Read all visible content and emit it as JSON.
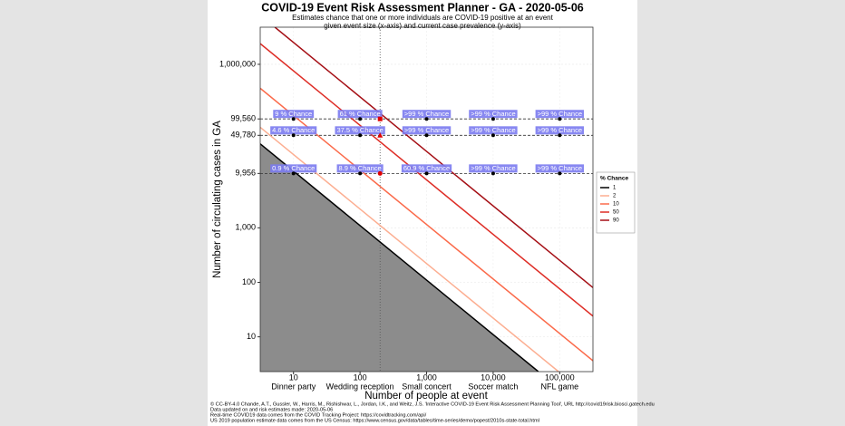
{
  "chart_data": {
    "type": "line",
    "title": "COVID-19 Event Risk Assessment Planner - GA - 2020-05-06",
    "subtitle": [
      "Estimates chance that one or more individuals are COVID-19 positive at an event",
      "given event size (x-axis) and current case prevalence (y-axis)"
    ],
    "xlabel": "Number of people at event",
    "ylabel": "Number of circulating cases in GA",
    "log_x": true,
    "log_y": true,
    "grid": true,
    "xlim": [
      3.16,
      316000
    ],
    "ylim": [
      2.3,
      4800000
    ],
    "xticks": [
      10,
      100,
      {
        "value": 1000,
        "label": "1,000"
      },
      {
        "value": 10000,
        "label": "10,000"
      },
      {
        "value": 100000,
        "label": "100,000"
      }
    ],
    "xtick_names": [
      "Dinner party",
      "Wedding reception",
      "Small concert",
      "Soccer match",
      "NFL game"
    ],
    "yticks": [
      10,
      100,
      {
        "value": 1000,
        "label": "1,000"
      },
      {
        "value": 9956,
        "label": "9,956"
      },
      {
        "value": 49780,
        "label": "49,780"
      },
      {
        "value": 99560,
        "label": "99,560"
      },
      {
        "value": 1000000,
        "label": "1,000,000"
      }
    ],
    "legend_title": "% Chance",
    "legend_position": "right",
    "series": [
      {
        "name": "1",
        "color": "#000000",
        "x": [
          3.16,
          47800
        ],
        "values": [
          34800,
          2.3
        ]
      },
      {
        "name": "2",
        "color": "#fcae91",
        "x": [
          3.16,
          96000
        ],
        "values": [
          70000,
          2.3
        ]
      },
      {
        "name": "10",
        "color": "#fb6a4a",
        "x": [
          3.16,
          316000
        ],
        "values": [
          364000,
          3.64
        ]
      },
      {
        "name": "50",
        "color": "#de2d26",
        "x": [
          3.16,
          316000
        ],
        "values": [
          2400000,
          24
        ]
      },
      {
        "name": "90",
        "color": "#a50f15",
        "x": [
          5.25,
          316000
        ],
        "values": [
          4800000,
          80
        ]
      }
    ],
    "highlight_x": 200,
    "rows": [
      {
        "y": 99560,
        "marker": "square",
        "x": [
          10,
          100,
          1000,
          10000,
          100000
        ],
        "labels": [
          "9 % Chance",
          "61 % Chance",
          ">99 % Chance",
          ">99 % Chance",
          ">99 % Chance"
        ]
      },
      {
        "y": 49780,
        "marker": "triangle",
        "x": [
          10,
          100,
          1000,
          10000,
          100000
        ],
        "labels": [
          "4.6 % Chance",
          "37.5 % Chance",
          ">99 % Chance",
          ">99 % Chance",
          ">99 % Chance"
        ]
      },
      {
        "y": 9956,
        "marker": "circle",
        "x": [
          10,
          100,
          1000,
          10000,
          100000
        ],
        "labels": [
          "0.9 % Chance",
          "8.9 % Chance",
          "60.9 % Chance",
          ">99 % Chance",
          ">99 % Chance"
        ]
      }
    ],
    "footer": [
      "© CC-BY-4.0  Chande, A.T., Gussler, W., Harris, M., Rishishwar, L., Jordan, I.K., and Weitz, J.S. 'Interactive COVID-19 Event Risk Assessment Planning Tool', URL http://covid19risk.biosci.gatech.edu",
      "Data updated on and risk estimates made:  2020-05-06",
      "Real-time COVID19 data comes from the COVID Tracking Project: https://covidtracking.com/api/",
      "US 2019 population estimate data comes from the US Census: https://www.census.gov/data/tables/time-series/demo/popest/2010s-state-total.html"
    ]
  }
}
